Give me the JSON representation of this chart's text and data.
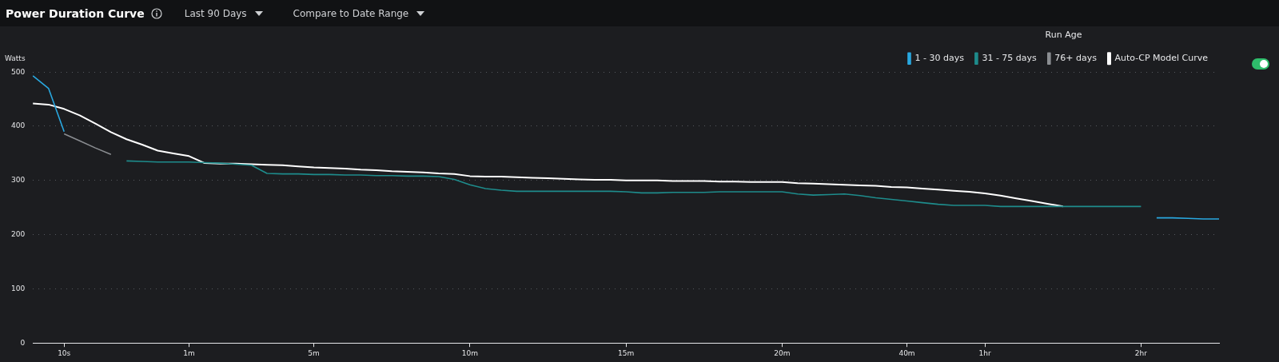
{
  "chart_data": {
    "type": "line",
    "title": "Power Duration Curve",
    "ylabel": "Watts",
    "legend_title": "Run Age",
    "annotations": [
      "Last 90 Days",
      "Compare to Date Range"
    ],
    "categories": [
      null,
      null,
      "10s",
      null,
      null,
      null,
      null,
      null,
      null,
      null,
      "1m",
      null,
      null,
      null,
      null,
      null,
      null,
      null,
      "5m",
      null,
      null,
      null,
      null,
      null,
      null,
      null,
      null,
      null,
      "10m",
      null,
      null,
      null,
      null,
      null,
      null,
      null,
      null,
      null,
      "15m",
      null,
      null,
      null,
      null,
      null,
      null,
      null,
      null,
      null,
      "20m",
      null,
      null,
      null,
      null,
      null,
      null,
      null,
      "40m",
      null,
      null,
      null,
      null,
      "1hr",
      null,
      null,
      null,
      null,
      null,
      null,
      null,
      null,
      null,
      "2hr",
      null,
      null,
      null,
      null,
      null
    ],
    "series": [
      {
        "name": "1 - 30 days",
        "color": "#29a8e0",
        "values": [
          493,
          470,
          390,
          null,
          null,
          null,
          null,
          null,
          null,
          null,
          null,
          null,
          null,
          null,
          null,
          null,
          null,
          null,
          null,
          null,
          null,
          null,
          null,
          null,
          null,
          null,
          null,
          null,
          null,
          null,
          null,
          null,
          null,
          null,
          null,
          null,
          null,
          null,
          null,
          null,
          null,
          null,
          null,
          null,
          null,
          null,
          null,
          null,
          null,
          null,
          null,
          null,
          null,
          null,
          null,
          null,
          null,
          null,
          null,
          null,
          null,
          null,
          null,
          null,
          null,
          null,
          null,
          null,
          null,
          null,
          null,
          null,
          231,
          231,
          230,
          229,
          229
        ]
      },
      {
        "name": "31 - 75 days",
        "color": "#1e8c8c",
        "values": [
          null,
          null,
          null,
          null,
          null,
          null,
          336,
          335,
          334,
          334,
          334,
          333,
          332,
          330,
          328,
          313,
          312,
          312,
          311,
          311,
          310,
          310,
          309,
          309,
          308,
          308,
          307,
          302,
          292,
          285,
          282,
          280,
          280,
          280,
          280,
          280,
          280,
          280,
          279,
          277,
          277,
          278,
          278,
          278,
          279,
          279,
          279,
          279,
          279,
          275,
          273,
          274,
          275,
          272,
          268,
          265,
          262,
          259,
          256,
          254,
          254,
          254,
          252,
          252,
          252,
          252,
          252,
          252,
          252,
          252,
          252,
          252,
          null,
          null,
          null,
          null,
          null
        ]
      },
      {
        "name": "76+ days",
        "color": "#8a8d91",
        "values": [
          null,
          null,
          386,
          373,
          360,
          348,
          null,
          null,
          null,
          null,
          null,
          null,
          null,
          null,
          null,
          null,
          null,
          null,
          null,
          null,
          null,
          null,
          null,
          null,
          null,
          null,
          null,
          null,
          null,
          null,
          null,
          null,
          null,
          null,
          null,
          null,
          null,
          null,
          null,
          null,
          null,
          null,
          null,
          null,
          null,
          null,
          null,
          null,
          null,
          null,
          null,
          null,
          null,
          null,
          null,
          null,
          null,
          null,
          null,
          null,
          null,
          null,
          null,
          null,
          null,
          null,
          null,
          null,
          null,
          null,
          null,
          null,
          null,
          null,
          null,
          null,
          null
        ]
      },
      {
        "name": "Auto-CP Model Curve",
        "color": "#ffffff",
        "values": [
          442,
          440,
          432,
          420,
          405,
          389,
          376,
          366,
          355,
          350,
          345,
          332,
          331,
          331,
          330,
          329,
          328,
          326,
          324,
          323,
          322,
          320,
          319,
          317,
          316,
          315,
          313,
          312,
          308,
          307,
          307,
          306,
          305,
          304,
          303,
          302,
          301,
          301,
          300,
          300,
          300,
          299,
          299,
          299,
          298,
          298,
          297,
          297,
          297,
          295,
          294,
          293,
          292,
          291,
          290,
          288,
          287,
          285,
          283,
          281,
          279,
          276,
          272,
          267,
          262,
          257,
          252,
          null,
          null,
          null,
          null,
          null,
          null,
          null,
          null,
          null,
          null
        ]
      }
    ],
    "ylim": [
      0,
      500
    ],
    "yticks": [
      0,
      100,
      200,
      300,
      400,
      500
    ],
    "grid": "y",
    "legend": "top right",
    "marker": "none",
    "line_style": "solid"
  }
}
